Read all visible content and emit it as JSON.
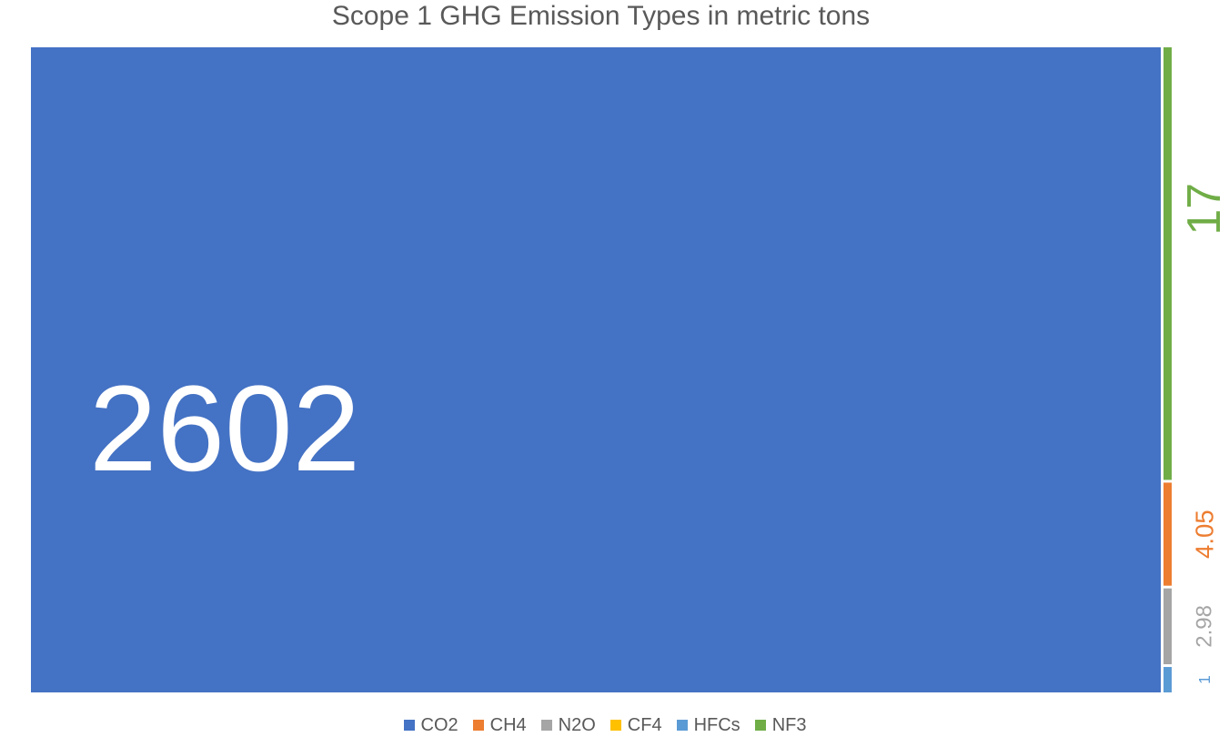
{
  "chart_data": {
    "type": "treemap",
    "title": "Scope 1 GHG Emission Types in metric tons",
    "legend_position": "bottom",
    "series": [
      {
        "name": "CO2",
        "value": 2602,
        "label": "2602",
        "color": "#4472C4"
      },
      {
        "name": "CH4",
        "value": 4.05,
        "label": "4.05",
        "color": "#ED7D31"
      },
      {
        "name": "N2O",
        "value": 2.98,
        "label": "2.98",
        "color": "#A5A5A5"
      },
      {
        "name": "CF4",
        "value": 0,
        "label": "",
        "color": "#FFC000"
      },
      {
        "name": "HFCs",
        "value": 1,
        "label": "1",
        "color": "#5B9BD5"
      },
      {
        "name": "NF3",
        "value": 17,
        "label": "17",
        "color": "#70AD47"
      }
    ]
  }
}
